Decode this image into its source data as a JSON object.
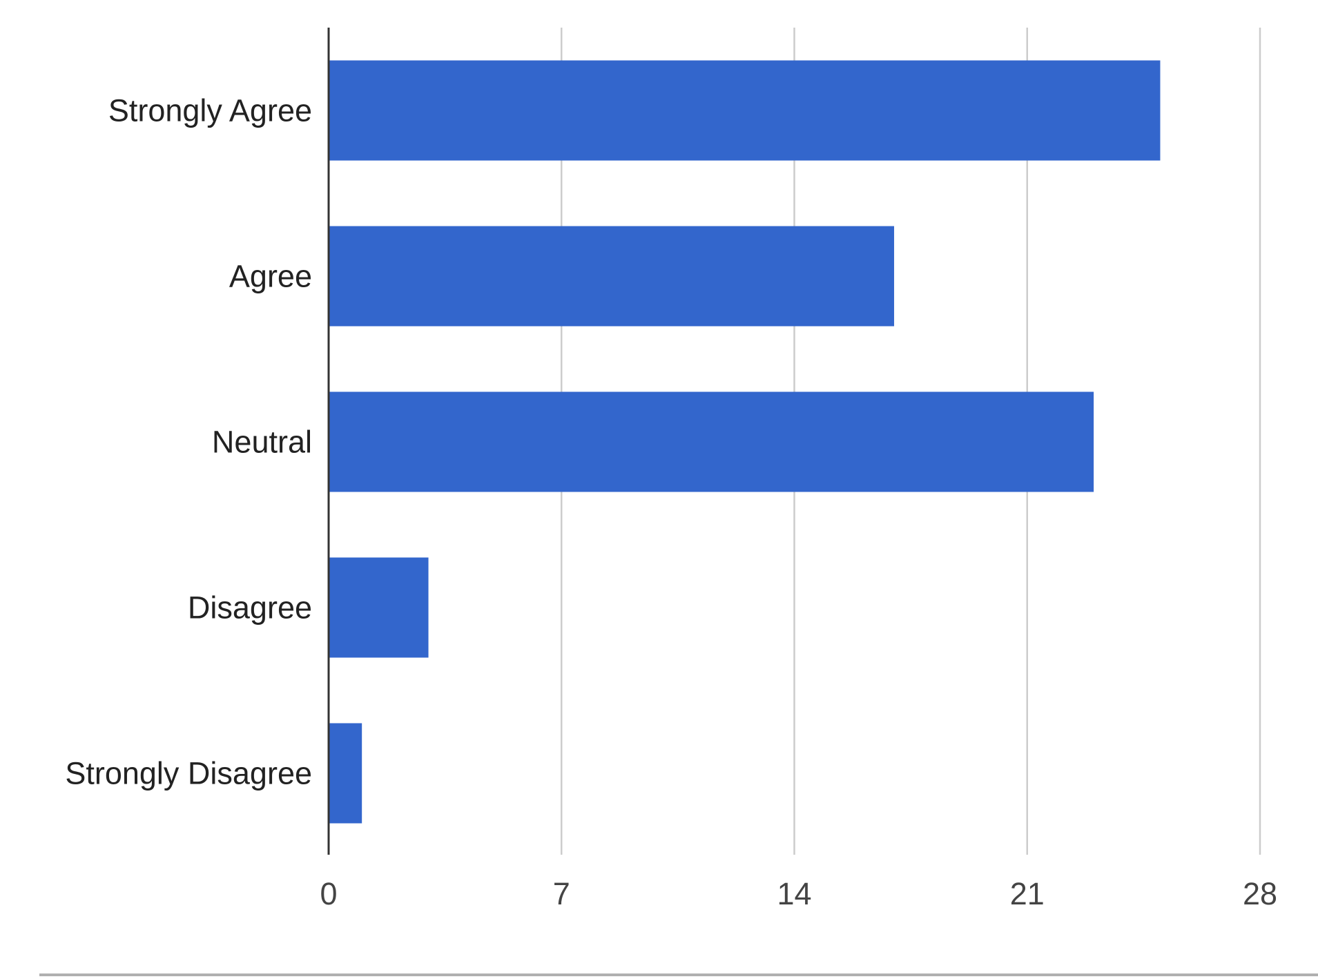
{
  "chart_data": {
    "type": "bar",
    "orientation": "horizontal",
    "categories": [
      "Strongly Agree",
      "Agree",
      "Neutral",
      "Disagree",
      "Strongly Disagree"
    ],
    "values": [
      25,
      17,
      23,
      3,
      1
    ],
    "xlim": [
      0,
      28
    ],
    "xticks": [
      "0",
      "7",
      "14",
      "21",
      "28"
    ],
    "title": "",
    "xlabel": "",
    "ylabel": "",
    "grid": true,
    "legend": "none",
    "colors": {
      "bar": "#3366cc",
      "grid": "#cccccc",
      "axis": "#333333",
      "category_text": "#222222",
      "tick_text": "#444444"
    }
  }
}
